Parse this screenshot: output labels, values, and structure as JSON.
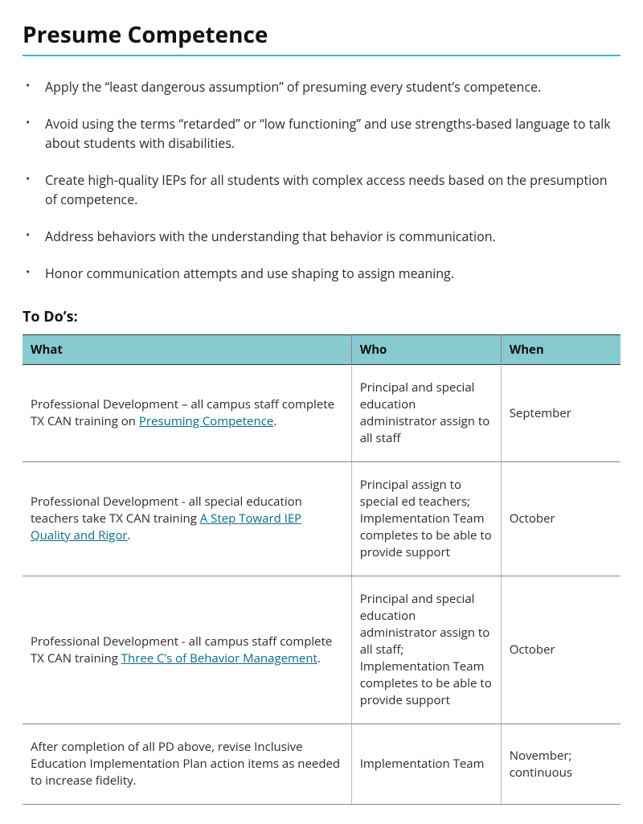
{
  "colors": {
    "accent_rule": "#3fb8c6",
    "table_header_bg": "#87cbd1",
    "link": "#0a6b8a",
    "body_text": "#2b2b2b",
    "border": "#888888"
  },
  "title": "Presume Competence",
  "bullets": [
    "Apply the “least dangerous assumption” of presuming every student’s competence.",
    "Avoid using the terms “retarded” or “low functioning” and use strengths-based language to talk about students with disabilities.",
    "Create high-quality IEPs for all students with complex access needs based on the presumption of competence.",
    "Address behaviors with the understanding that behavior is communication.",
    "Honor communication attempts and use shaping to assign meaning."
  ],
  "todos_heading": "To Do’s:",
  "table": {
    "columns": [
      "What",
      "Who",
      "When"
    ],
    "col_widths": [
      "55%",
      "25%",
      "20%"
    ],
    "rows": [
      {
        "what_parts": [
          {
            "text": "Professional Development – all campus staff complete TX CAN training on "
          },
          {
            "text": "Presuming Competence",
            "link": true
          },
          {
            "text": "."
          }
        ],
        "who": "Principal and special education administrator assign to all staff",
        "when": "September"
      },
      {
        "what_parts": [
          {
            "text": "Professional Development - all special education teachers take TX CAN training "
          },
          {
            "text": "A Step Toward IEP Quality and Rigor",
            "link": true
          },
          {
            "text": "."
          }
        ],
        "who": "Principal assign to special ed teachers; Implementation Team completes to be able to provide support",
        "when": "October"
      },
      {
        "what_parts": [
          {
            "text": "Professional Development - all campus staff complete TX CAN training "
          },
          {
            "text": "Three C’s of Behavior Management",
            "link": true
          },
          {
            "text": "."
          }
        ],
        "who": "Principal and special education administrator assign to all staff; Implementation Team completes to be able to provide support",
        "when": "October"
      },
      {
        "what_parts": [
          {
            "text": "After completion of all PD above, revise Inclusive Education Implementation Plan action items as needed to increase fidelity."
          }
        ],
        "who": "Implementation Team",
        "when": "November; continuous"
      }
    ]
  }
}
